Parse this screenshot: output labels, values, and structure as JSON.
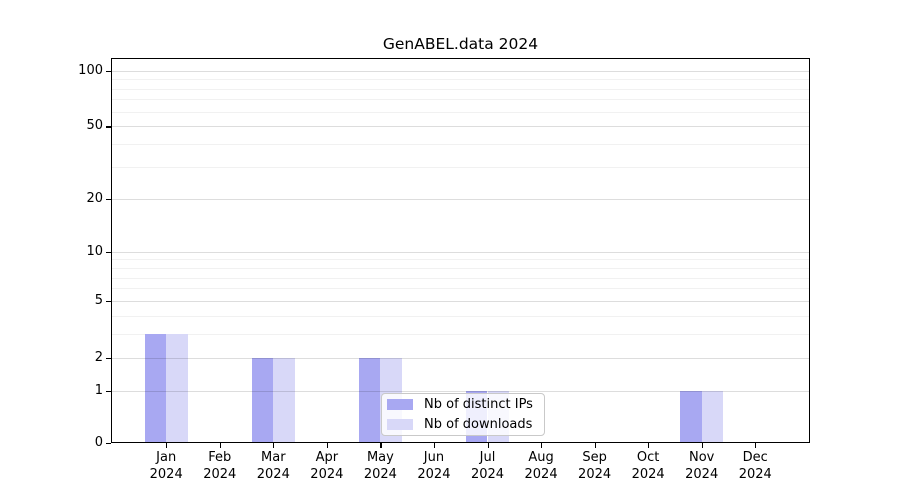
{
  "chart_data": {
    "type": "bar",
    "title": "GenABEL.data 2024",
    "months": [
      "Jan",
      "Feb",
      "Mar",
      "Apr",
      "May",
      "Jun",
      "Jul",
      "Aug",
      "Sep",
      "Oct",
      "Nov",
      "Dec"
    ],
    "year": "2024",
    "series": [
      {
        "name": "Nb of distinct IPs",
        "color": "#a8a8f2",
        "values": [
          3,
          0,
          2,
          0,
          2,
          0,
          1,
          0,
          0,
          0,
          1,
          0
        ]
      },
      {
        "name": "Nb of downloads",
        "color": "#d8d8f8",
        "values": [
          3,
          0,
          2,
          0,
          2,
          0,
          1,
          0,
          0,
          0,
          1,
          0
        ]
      }
    ],
    "y_axis": {
      "scale": "log1p",
      "major_ticks": [
        0,
        1,
        2,
        5,
        10,
        20,
        50,
        100
      ],
      "minor_ticks": [
        3,
        4,
        6,
        7,
        8,
        9,
        30,
        40,
        60,
        70,
        80,
        90
      ],
      "range_top": 115
    },
    "xlabel": "",
    "ylabel": "",
    "grid": true,
    "legend_position": "lower center"
  }
}
